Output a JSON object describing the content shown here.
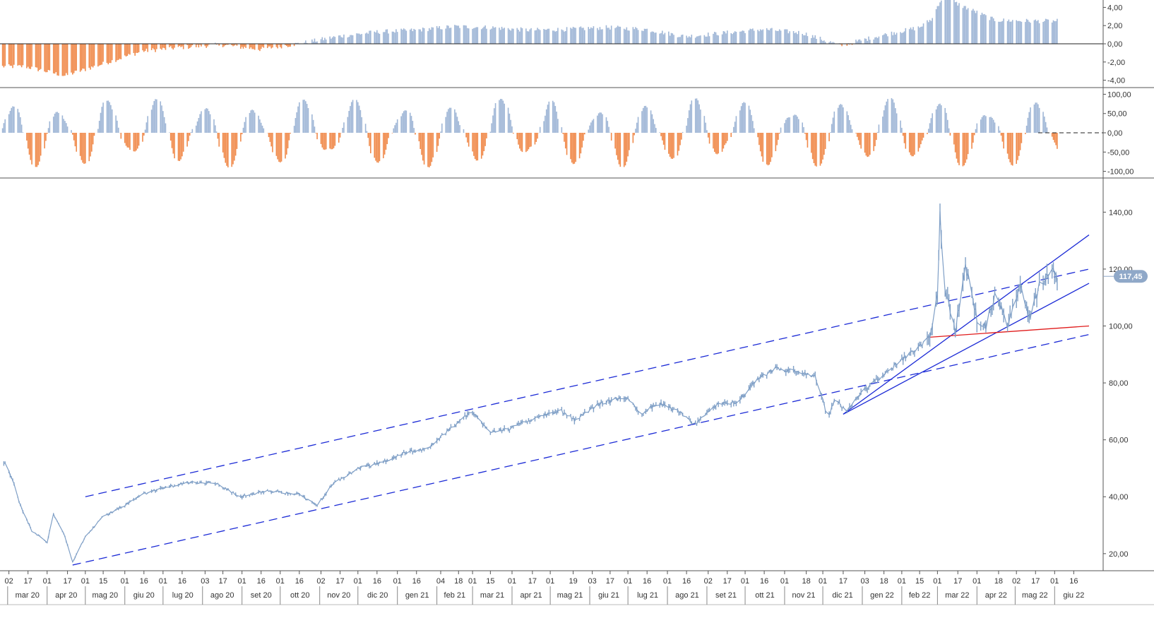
{
  "colors": {
    "price": "#7f9fc6",
    "bar_positive": "#9fb6d6",
    "bar_negative": "#f08a4b",
    "trend_blue": "#1c2bd6",
    "trend_red": "#e01b1b",
    "last_price_badge": "#8fa8c8"
  },
  "chart_data": [
    {
      "type": "bar",
      "panel": "oscillator-top",
      "y_ticks": [
        "4,00",
        "2,00",
        "0,00",
        "-2,00",
        "-4,00"
      ],
      "ylim": [
        -4.5,
        4.5
      ],
      "zero_line": "dashed",
      "description_of_shape_points": [
        {
          "month": "mar 20",
          "value": -2.5
        },
        {
          "month": "apr 20",
          "value": -3.5
        },
        {
          "month": "mag 20",
          "value": -2.2
        },
        {
          "month": "giu 20",
          "value": -0.8
        },
        {
          "month": "lug 20",
          "value": -0.4
        },
        {
          "month": "ago 20",
          "value": -0.1
        },
        {
          "month": "set 20",
          "value": -0.6
        },
        {
          "month": "ott 20",
          "value": 0.0
        },
        {
          "month": "nov 20",
          "value": 0.8
        },
        {
          "month": "dic 20",
          "value": 1.3
        },
        {
          "month": "gen 21",
          "value": 1.5
        },
        {
          "month": "feb 21",
          "value": 1.9
        },
        {
          "month": "mar 21",
          "value": 1.8
        },
        {
          "month": "apr 21",
          "value": 1.5
        },
        {
          "month": "mag 21",
          "value": 1.6
        },
        {
          "month": "giu 21",
          "value": 1.8
        },
        {
          "month": "lug 21",
          "value": 1.6
        },
        {
          "month": "ago 21",
          "value": 0.8
        },
        {
          "month": "set 21",
          "value": 1.2
        },
        {
          "month": "ott 21",
          "value": 1.6
        },
        {
          "month": "nov 21",
          "value": 1.2
        },
        {
          "month": "dic 21",
          "value": -0.2
        },
        {
          "month": "gen 22",
          "value": 0.9
        },
        {
          "month": "feb 22",
          "value": 1.8
        },
        {
          "month": "mar 22",
          "value": 4.5
        },
        {
          "month": "apr 22",
          "value": 2.6
        },
        {
          "month": "mag 22",
          "value": 2.5
        }
      ]
    },
    {
      "type": "bar",
      "panel": "oscillator-middle",
      "y_ticks": [
        "100,00",
        "50,00",
        "0,00",
        "-50,00",
        "-100,00"
      ],
      "ylim": [
        -110,
        110
      ],
      "zero_line": "dashed"
    },
    {
      "type": "line",
      "panel": "price",
      "y_ticks": [
        "140,00",
        "120,00",
        "100,00",
        "80,00",
        "60,00",
        "40,00",
        "20,00"
      ],
      "ylim": [
        14,
        152
      ],
      "last_price": "117,45",
      "key_points": [
        {
          "date": "2020-02-28",
          "value": 52
        },
        {
          "date": "2020-03-05",
          "value": 46
        },
        {
          "date": "2020-03-10",
          "value": 38
        },
        {
          "date": "2020-03-20",
          "value": 28
        },
        {
          "date": "2020-04-01",
          "value": 24
        },
        {
          "date": "2020-04-06",
          "value": 34
        },
        {
          "date": "2020-04-15",
          "value": 26
        },
        {
          "date": "2020-04-21",
          "value": 17
        },
        {
          "date": "2020-05-01",
          "value": 26
        },
        {
          "date": "2020-05-15",
          "value": 33
        },
        {
          "date": "2020-06-01",
          "value": 37
        },
        {
          "date": "2020-06-16",
          "value": 41
        },
        {
          "date": "2020-07-01",
          "value": 43
        },
        {
          "date": "2020-07-20",
          "value": 45
        },
        {
          "date": "2020-08-10",
          "value": 45
        },
        {
          "date": "2020-08-31",
          "value": 40
        },
        {
          "date": "2020-09-20",
          "value": 42
        },
        {
          "date": "2020-10-15",
          "value": 41
        },
        {
          "date": "2020-10-30",
          "value": 37
        },
        {
          "date": "2020-11-10",
          "value": 44
        },
        {
          "date": "2020-12-01",
          "value": 50
        },
        {
          "date": "2020-12-20",
          "value": 52
        },
        {
          "date": "2021-01-10",
          "value": 56
        },
        {
          "date": "2021-01-25",
          "value": 57
        },
        {
          "date": "2021-02-12",
          "value": 64
        },
        {
          "date": "2021-02-28",
          "value": 70
        },
        {
          "date": "2021-03-15",
          "value": 63
        },
        {
          "date": "2021-03-31",
          "value": 64
        },
        {
          "date": "2021-04-20",
          "value": 68
        },
        {
          "date": "2021-05-10",
          "value": 70
        },
        {
          "date": "2021-05-20",
          "value": 67
        },
        {
          "date": "2021-06-10",
          "value": 73
        },
        {
          "date": "2021-07-01",
          "value": 75
        },
        {
          "date": "2021-07-10",
          "value": 69
        },
        {
          "date": "2021-07-25",
          "value": 73
        },
        {
          "date": "2021-08-10",
          "value": 70
        },
        {
          "date": "2021-08-22",
          "value": 65
        },
        {
          "date": "2021-09-10",
          "value": 73
        },
        {
          "date": "2021-09-25",
          "value": 73
        },
        {
          "date": "2021-10-10",
          "value": 81
        },
        {
          "date": "2021-10-25",
          "value": 85
        },
        {
          "date": "2021-11-10",
          "value": 84
        },
        {
          "date": "2021-11-25",
          "value": 82
        },
        {
          "date": "2021-12-01",
          "value": 74
        },
        {
          "date": "2021-12-05",
          "value": 67
        },
        {
          "date": "2021-12-10",
          "value": 74
        },
        {
          "date": "2021-12-20",
          "value": 70
        },
        {
          "date": "2022-01-01",
          "value": 77
        },
        {
          "date": "2022-01-15",
          "value": 82
        },
        {
          "date": "2022-02-01",
          "value": 88
        },
        {
          "date": "2022-02-22",
          "value": 95
        },
        {
          "date": "2022-03-01",
          "value": 110
        },
        {
          "date": "2022-03-03",
          "value": 138
        },
        {
          "date": "2022-03-07",
          "value": 112
        },
        {
          "date": "2022-03-15",
          "value": 98
        },
        {
          "date": "2022-03-23",
          "value": 121
        },
        {
          "date": "2022-04-01",
          "value": 103
        },
        {
          "date": "2022-04-08",
          "value": 99
        },
        {
          "date": "2022-04-15",
          "value": 112
        },
        {
          "date": "2022-04-25",
          "value": 101
        },
        {
          "date": "2022-05-05",
          "value": 113
        },
        {
          "date": "2022-05-12",
          "value": 103
        },
        {
          "date": "2022-05-20",
          "value": 114
        },
        {
          "date": "2022-05-30",
          "value": 121
        },
        {
          "date": "2022-06-03",
          "value": 117.45
        }
      ],
      "trendlines": [
        {
          "style": "dashed",
          "color": "blue",
          "from": {
            "date": "2020-05-01",
            "value": 40
          },
          "to": {
            "date": "2022-06-28",
            "value": 120
          }
        },
        {
          "style": "dashed",
          "color": "blue",
          "from": {
            "date": "2020-04-21",
            "value": 16
          },
          "to": {
            "date": "2022-06-28",
            "value": 97
          }
        },
        {
          "style": "solid",
          "color": "blue",
          "from": {
            "date": "2021-12-17",
            "value": 69
          },
          "to": {
            "date": "2022-06-28",
            "value": 132
          }
        },
        {
          "style": "solid",
          "color": "blue",
          "from": {
            "date": "2021-12-17",
            "value": 69
          },
          "to": {
            "date": "2022-06-28",
            "value": 115
          }
        },
        {
          "style": "solid",
          "color": "red",
          "from": {
            "date": "2022-02-21",
            "value": 96
          },
          "to": {
            "date": "2022-06-28",
            "value": 100
          }
        }
      ]
    }
  ],
  "x_axis": {
    "day_ticks": [
      "02",
      "17",
      "01",
      "17",
      "01",
      "15",
      "01",
      "16",
      "01",
      "16",
      "03",
      "17",
      "01",
      "16",
      "01",
      "16",
      "02",
      "17",
      "01",
      "16",
      "01",
      "16",
      "04",
      "18",
      "01",
      "15",
      "01",
      "17",
      "01",
      "19",
      "03",
      "17",
      "01",
      "16",
      "01",
      "16",
      "02",
      "17",
      "01",
      "16",
      "01",
      "18",
      "01",
      "17",
      "03",
      "18",
      "01",
      "15",
      "01",
      "17",
      "01",
      "18",
      "02",
      "17",
      "01",
      "16"
    ],
    "day_tick_dates": [
      "2020-03-02",
      "2020-03-17",
      "2020-04-01",
      "2020-04-17",
      "2020-05-01",
      "2020-05-15",
      "2020-06-01",
      "2020-06-16",
      "2020-07-01",
      "2020-07-16",
      "2020-08-03",
      "2020-08-17",
      "2020-09-01",
      "2020-09-16",
      "2020-10-01",
      "2020-10-16",
      "2020-11-02",
      "2020-11-17",
      "2020-12-01",
      "2020-12-16",
      "2021-01-01",
      "2021-01-16",
      "2021-02-04",
      "2021-02-18",
      "2021-03-01",
      "2021-03-15",
      "2021-04-01",
      "2021-04-17",
      "2021-05-01",
      "2021-05-19",
      "2021-06-03",
      "2021-06-17",
      "2021-07-01",
      "2021-07-16",
      "2021-08-01",
      "2021-08-16",
      "2021-09-02",
      "2021-09-17",
      "2021-10-01",
      "2021-10-16",
      "2021-11-01",
      "2021-11-18",
      "2021-12-01",
      "2021-12-17",
      "2022-01-03",
      "2022-01-18",
      "2022-02-01",
      "2022-02-15",
      "2022-03-01",
      "2022-03-17",
      "2022-04-01",
      "2022-04-18",
      "2022-05-02",
      "2022-05-17",
      "2022-06-01",
      "2022-06-16"
    ],
    "month_labels": [
      "mar 20",
      "apr 20",
      "mag 20",
      "giu 20",
      "lug 20",
      "ago 20",
      "set 20",
      "ott 20",
      "nov 20",
      "dic 20",
      "gen 21",
      "feb 21",
      "mar 21",
      "apr 21",
      "mag 21",
      "giu 21",
      "lug 21",
      "ago 21",
      "set 21",
      "ott 21",
      "nov 21",
      "dic 21",
      "gen 22",
      "feb 22",
      "mar 22",
      "apr 22",
      "mag 22",
      "giu 22"
    ],
    "month_start_dates": [
      "2020-03-01",
      "2020-04-01",
      "2020-05-01",
      "2020-06-01",
      "2020-07-01",
      "2020-08-01",
      "2020-09-01",
      "2020-10-01",
      "2020-11-01",
      "2020-12-01",
      "2021-01-01",
      "2021-02-01",
      "2021-03-01",
      "2021-04-01",
      "2021-05-01",
      "2021-06-01",
      "2021-07-01",
      "2021-08-01",
      "2021-09-01",
      "2021-10-01",
      "2021-11-01",
      "2021-12-01",
      "2022-01-01",
      "2022-02-01",
      "2022-03-01",
      "2022-04-01",
      "2022-05-01",
      "2022-06-01"
    ]
  }
}
